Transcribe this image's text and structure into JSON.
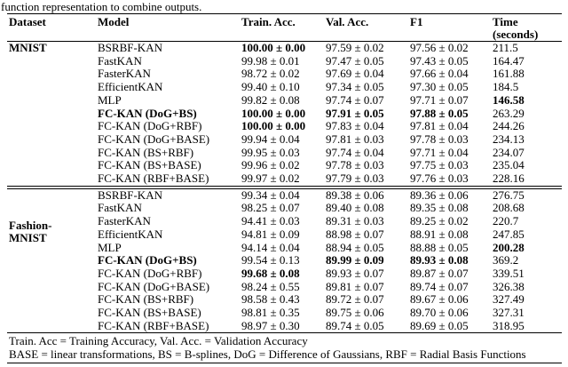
{
  "caption": "function representation to combine outputs.",
  "columns": {
    "dataset": "Dataset",
    "model": "Model",
    "train": "Train. Acc.",
    "val": "Val. Acc.",
    "f1": "F1",
    "time_line1": "Time",
    "time_line2": "(seconds)"
  },
  "sections": [
    {
      "dataset": "MNIST",
      "dataset_lines": [
        "MNIST"
      ],
      "rows": [
        {
          "model": "BSRBF-KAN",
          "train": "100.00 ± 0.00",
          "val": "97.59 ± 0.02",
          "f1": "97.56 ± 0.02",
          "time": "211.5",
          "bold": [
            "train"
          ]
        },
        {
          "model": "FastKAN",
          "train": "99.98 ± 0.01",
          "val": "97.47 ± 0.05",
          "f1": "97.43 ± 0.05",
          "time": "164.47",
          "bold": []
        },
        {
          "model": "FasterKAN",
          "train": "98.72 ± 0.02",
          "val": "97.69 ± 0.04",
          "f1": "97.66 ± 0.04",
          "time": "161.88",
          "bold": []
        },
        {
          "model": "EfficientKAN",
          "train": "99.40 ± 0.10",
          "val": "97.34 ± 0.05",
          "f1": "97.30 ± 0.05",
          "time": "184.5",
          "bold": []
        },
        {
          "model": "MLP",
          "train": "99.82 ± 0.08",
          "val": "97.74 ± 0.07",
          "f1": "97.71 ± 0.07",
          "time": "146.58",
          "bold": [
            "time"
          ]
        },
        {
          "model": "FC-KAN (DoG+BS)",
          "train": "100.00 ± 0.00",
          "val": "97.91 ± 0.05",
          "f1": "97.88 ± 0.05",
          "time": "263.29",
          "bold": [
            "model",
            "train",
            "val",
            "f1"
          ]
        },
        {
          "model": "FC-KAN (DoG+RBF)",
          "train": "100.00 ± 0.00",
          "val": "97.83 ± 0.04",
          "f1": "97.81 ± 0.04",
          "time": "244.26",
          "bold": [
            "train"
          ]
        },
        {
          "model": "FC-KAN (DoG+BASE)",
          "train": "99.94 ± 0.04",
          "val": "97.81 ± 0.03",
          "f1": "97.78 ± 0.03",
          "time": "234.13",
          "bold": []
        },
        {
          "model": "FC-KAN (BS+RBF)",
          "train": "99.95 ± 0.03",
          "val": "97.74 ± 0.04",
          "f1": "97.71 ± 0.04",
          "time": "234.07",
          "bold": []
        },
        {
          "model": "FC-KAN (BS+BASE)",
          "train": "99.96 ± 0.02",
          "val": "97.78 ± 0.03",
          "f1": "97.75 ± 0.03",
          "time": "235.04",
          "bold": []
        },
        {
          "model": "FC-KAN (RBF+BASE)",
          "train": "99.97 ± 0.02",
          "val": "97.79 ± 0.03",
          "f1": "97.76 ± 0.03",
          "time": "228.16",
          "bold": []
        }
      ]
    },
    {
      "dataset": "Fashion-MNIST",
      "dataset_lines": [
        "Fashion-",
        "MNIST"
      ],
      "rows": [
        {
          "model": "BSRBF-KAN",
          "train": "99.34 ± 0.04",
          "val": "89.38 ± 0.06",
          "f1": "89.36 ± 0.06",
          "time": "276.75",
          "bold": []
        },
        {
          "model": "FastKAN",
          "train": "98.25 ± 0.07",
          "val": "89.40 ± 0.08",
          "f1": "89.35 ± 0.08",
          "time": "208.68",
          "bold": []
        },
        {
          "model": "FasterKAN",
          "train": "94.41 ± 0.03",
          "val": "89.31 ± 0.03",
          "f1": "89.25 ± 0.02",
          "time": "220.7",
          "bold": []
        },
        {
          "model": "EfficientKAN",
          "train": "94.81 ± 0.09",
          "val": "88.98 ± 0.07",
          "f1": "88.91 ± 0.08",
          "time": "247.85",
          "bold": []
        },
        {
          "model": "MLP",
          "train": "94.14 ± 0.04",
          "val": "88.94 ± 0.05",
          "f1": "88.88 ± 0.05",
          "time": "200.28",
          "bold": [
            "time"
          ]
        },
        {
          "model": "FC-KAN (DoG+BS)",
          "train": "99.54 ± 0.13",
          "val": "89.99 ± 0.09",
          "f1": "89.93 ± 0.08",
          "time": "369.2",
          "bold": [
            "model",
            "val",
            "f1"
          ]
        },
        {
          "model": "FC-KAN (DoG+RBF)",
          "train": "99.68 ± 0.08",
          "val": "89.93 ± 0.07",
          "f1": "89.87 ± 0.07",
          "time": "339.51",
          "bold": [
            "train"
          ]
        },
        {
          "model": "FC-KAN (DoG+BASE)",
          "train": "98.24 ± 0.55",
          "val": "89.81 ± 0.07",
          "f1": "89.74 ± 0.07",
          "time": "326.38",
          "bold": []
        },
        {
          "model": "FC-KAN (BS+RBF)",
          "train": "98.58 ± 0.43",
          "val": "89.72 ± 0.07",
          "f1": "89.67 ± 0.06",
          "time": "327.49",
          "bold": []
        },
        {
          "model": "FC-KAN (BS+BASE)",
          "train": "98.81 ± 0.35",
          "val": "89.75 ± 0.06",
          "f1": "89.70 ± 0.06",
          "time": "327.31",
          "bold": []
        },
        {
          "model": "FC-KAN (RBF+BASE)",
          "train": "98.97 ± 0.30",
          "val": "89.74 ± 0.05",
          "f1": "89.69 ± 0.05",
          "time": "318.95",
          "bold": []
        }
      ]
    }
  ],
  "footnotes": [
    "Train. Acc = Training Accuracy, Val. Acc. = Validation Accuracy",
    "BASE = linear transformations, BS = B-splines, DoG = Difference of Gaussians, RBF = Radial Basis Functions"
  ]
}
